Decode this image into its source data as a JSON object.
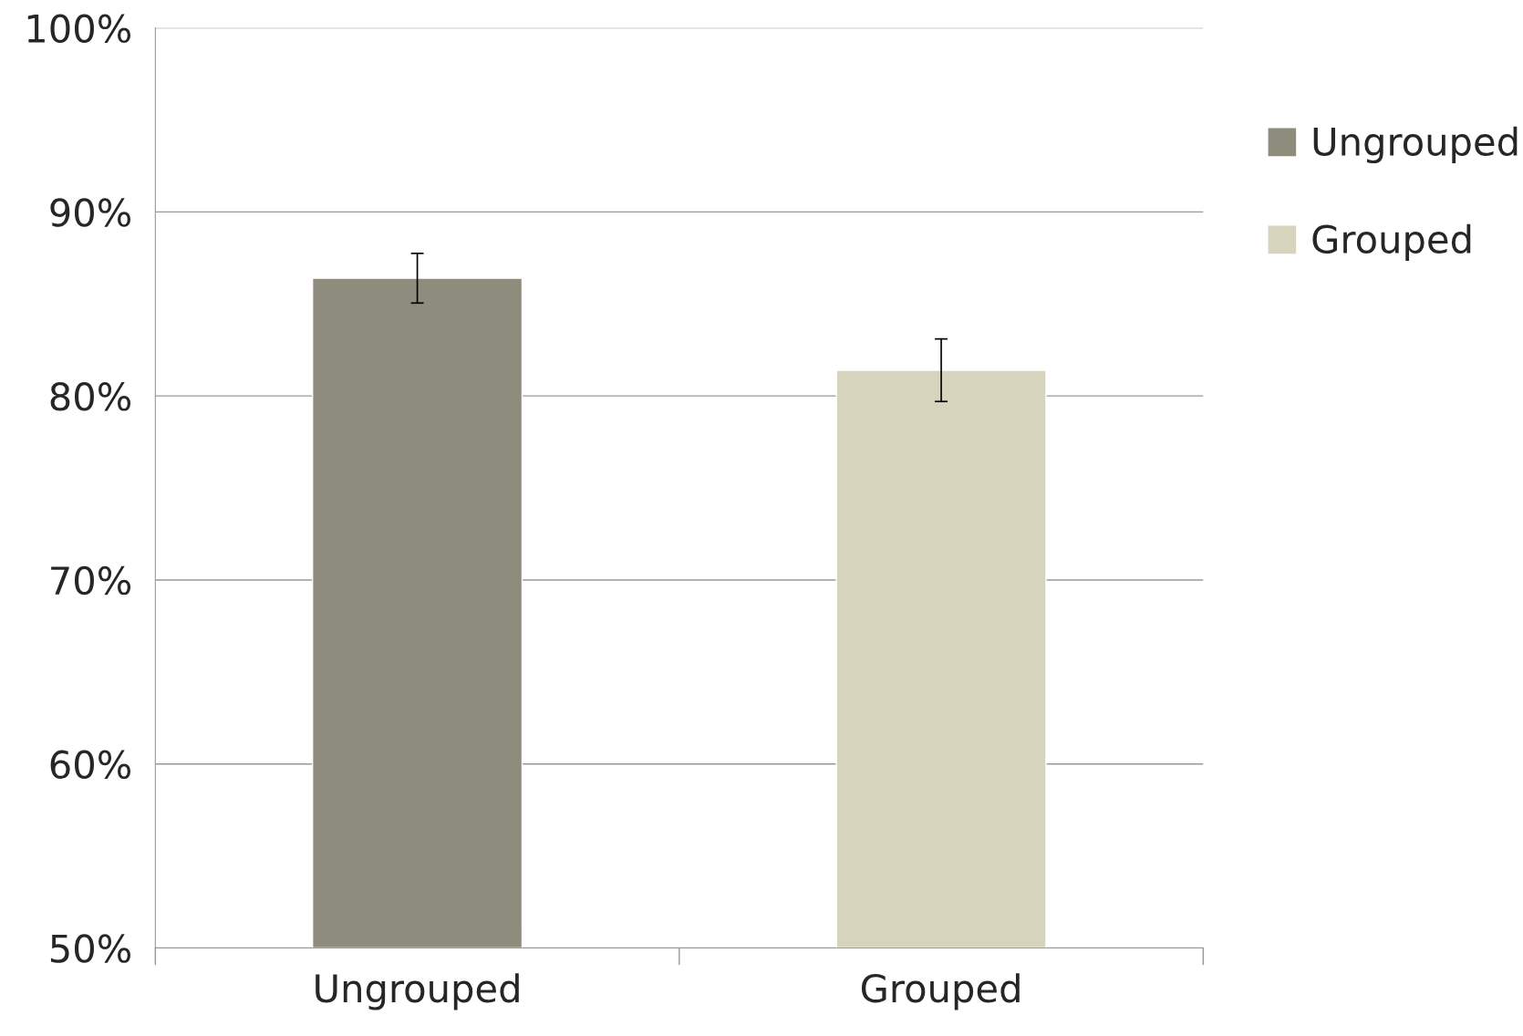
{
  "chart_data": {
    "type": "bar",
    "categories": [
      "Ungrouped",
      "Grouped"
    ],
    "series": [
      {
        "name": "Ungrouped",
        "color": "#8e8c7c",
        "values": [
          86.4,
          null
        ],
        "errors": [
          1.35,
          null
        ]
      },
      {
        "name": "Grouped",
        "color": "#d6d4bd",
        "values": [
          null,
          81.4
        ],
        "errors": [
          null,
          1.7
        ]
      }
    ],
    "ylim": [
      50,
      100
    ],
    "yticks": [
      {
        "value": 50,
        "label": "50%"
      },
      {
        "value": 60,
        "label": "60%"
      },
      {
        "value": 70,
        "label": "70%"
      },
      {
        "value": 80,
        "label": "80%"
      },
      {
        "value": 90,
        "label": "90%"
      },
      {
        "value": 100,
        "label": "100%"
      }
    ],
    "grid": "y",
    "legend": "right"
  }
}
